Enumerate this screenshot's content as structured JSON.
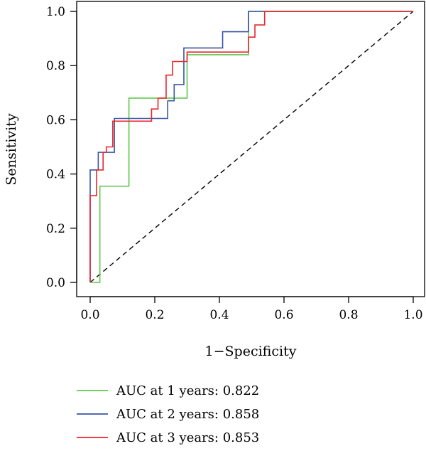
{
  "chart_data": {
    "type": "line",
    "title": "",
    "xlabel": "1−Specificity",
    "ylabel": "Sensitivity",
    "xlim": [
      0.0,
      1.0
    ],
    "ylim": [
      0.0,
      1.0
    ],
    "xticks": [
      "0.0",
      "0.2",
      "0.4",
      "0.6",
      "0.8",
      "1.0"
    ],
    "yticks": [
      "0.0",
      "0.2",
      "0.4",
      "0.6",
      "0.8",
      "1.0"
    ],
    "grid": false,
    "legend": "bottom",
    "reference_line": {
      "style": "dashed",
      "color": "#000000",
      "from": [
        0,
        0
      ],
      "to": [
        1,
        1
      ]
    },
    "series": [
      {
        "name": "AUC at 1 years: 0.822",
        "color": "#5cc84a",
        "points": [
          [
            0,
            0
          ],
          [
            0.03,
            0
          ],
          [
            0.03,
            0.355
          ],
          [
            0.12,
            0.355
          ],
          [
            0.12,
            0.68
          ],
          [
            0.3,
            0.68
          ],
          [
            0.3,
            0.84
          ],
          [
            0.49,
            0.84
          ],
          [
            0.49,
            1.0
          ],
          [
            1.0,
            1.0
          ]
        ]
      },
      {
        "name": "AUC at 2 years: 0.858",
        "color": "#3a55a4",
        "points": [
          [
            0,
            0
          ],
          [
            0,
            0.415
          ],
          [
            0.025,
            0.415
          ],
          [
            0.025,
            0.48
          ],
          [
            0.045,
            0.48
          ],
          [
            0.045,
            0.48
          ],
          [
            0.075,
            0.48
          ],
          [
            0.075,
            0.605
          ],
          [
            0.24,
            0.605
          ],
          [
            0.24,
            0.67
          ],
          [
            0.26,
            0.67
          ],
          [
            0.26,
            0.73
          ],
          [
            0.29,
            0.73
          ],
          [
            0.29,
            0.865
          ],
          [
            0.41,
            0.865
          ],
          [
            0.41,
            0.925
          ],
          [
            0.49,
            0.925
          ],
          [
            0.49,
            1.0
          ],
          [
            1.0,
            1.0
          ]
        ]
      },
      {
        "name": "AUC at 3 years: 0.853",
        "color": "#e8262d",
        "points": [
          [
            0,
            0
          ],
          [
            0,
            0.32
          ],
          [
            0.02,
            0.32
          ],
          [
            0.02,
            0.415
          ],
          [
            0.04,
            0.415
          ],
          [
            0.04,
            0.48
          ],
          [
            0.05,
            0.48
          ],
          [
            0.05,
            0.5
          ],
          [
            0.07,
            0.5
          ],
          [
            0.07,
            0.595
          ],
          [
            0.19,
            0.595
          ],
          [
            0.19,
            0.64
          ],
          [
            0.21,
            0.64
          ],
          [
            0.21,
            0.68
          ],
          [
            0.235,
            0.68
          ],
          [
            0.235,
            0.765
          ],
          [
            0.255,
            0.765
          ],
          [
            0.255,
            0.815
          ],
          [
            0.3,
            0.815
          ],
          [
            0.3,
            0.85
          ],
          [
            0.49,
            0.85
          ],
          [
            0.49,
            0.905
          ],
          [
            0.51,
            0.905
          ],
          [
            0.51,
            0.95
          ],
          [
            0.54,
            0.95
          ],
          [
            0.54,
            1.0
          ],
          [
            1.0,
            1.0
          ]
        ]
      }
    ]
  }
}
